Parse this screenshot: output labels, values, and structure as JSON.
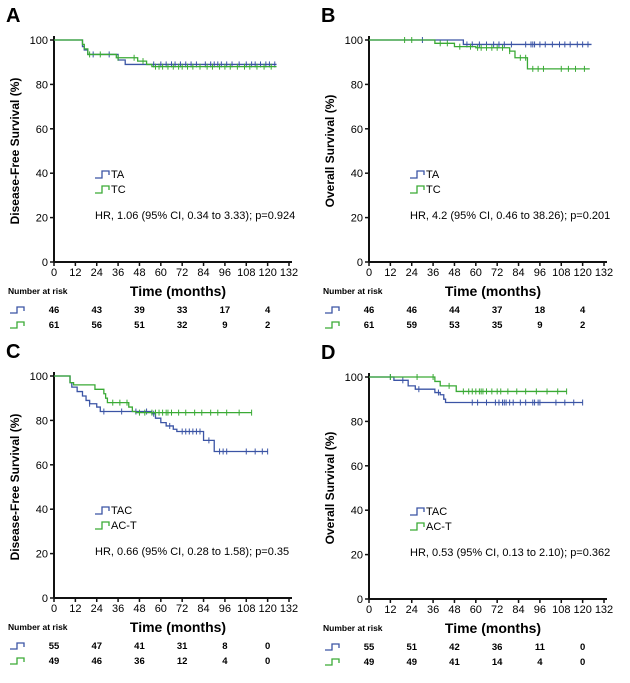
{
  "colors": {
    "blue": "#3b54a5",
    "green": "#3aaa35",
    "axis": "#111111"
  },
  "chart_data": [
    {
      "type": "line",
      "subtype": "kaplan-meier",
      "panel": "A",
      "ylabel": "Disease-Free Survival (%)",
      "xlabel": "Time (months)",
      "xlim": [
        0,
        132
      ],
      "ylim": [
        0,
        100
      ],
      "xticks": [
        "0",
        "12",
        "24",
        "36",
        "48",
        "60",
        "72",
        "84",
        "96",
        "108",
        "120",
        "132"
      ],
      "yticks": [
        "0",
        "20",
        "40",
        "60",
        "80",
        "100"
      ],
      "annotation": "HR, 1.06 (95% CI, 0.34 to 3.33); p=0.924",
      "risk_title": "Number at risk",
      "risk_times": [
        0,
        24,
        48,
        72,
        96,
        120
      ],
      "series": [
        {
          "name": "TA",
          "color": "blue",
          "risk": [
            "46",
            "43",
            "39",
            "33",
            "17",
            "4"
          ],
          "steps": [
            [
              0,
              100
            ],
            [
              16,
              97
            ],
            [
              17,
              95.5
            ],
            [
              19,
              93.5
            ],
            [
              36,
              91
            ],
            [
              40,
              89
            ],
            [
              125,
              89
            ]
          ],
          "censored": [
            22,
            31,
            56,
            60,
            63,
            66,
            68,
            71,
            74,
            77,
            80,
            85,
            88,
            90,
            92,
            94,
            97,
            100,
            104,
            108,
            111,
            113,
            116,
            119,
            121,
            124
          ]
        },
        {
          "name": "TC",
          "color": "green",
          "risk": [
            "61",
            "56",
            "51",
            "32",
            "9",
            "2"
          ],
          "steps": [
            [
              0,
              100
            ],
            [
              16,
              98
            ],
            [
              17,
              96
            ],
            [
              19,
              93.5
            ],
            [
              35,
              92
            ],
            [
              47,
              90.5
            ],
            [
              52,
              89
            ],
            [
              55,
              88
            ],
            [
              125,
              88
            ]
          ],
          "censored": [
            20,
            26,
            36,
            45,
            50,
            57,
            59,
            61,
            64,
            67,
            70,
            72,
            75,
            78,
            82,
            86,
            89,
            93,
            96,
            99,
            103,
            107,
            110,
            114,
            118,
            122
          ]
        }
      ]
    },
    {
      "type": "line",
      "subtype": "kaplan-meier",
      "panel": "B",
      "ylabel": "Overall Survival (%)",
      "xlabel": "Time (months)",
      "xlim": [
        0,
        132
      ],
      "ylim": [
        0,
        100
      ],
      "xticks": [
        "0",
        "12",
        "24",
        "36",
        "48",
        "60",
        "72",
        "84",
        "96",
        "108",
        "120",
        "132"
      ],
      "yticks": [
        "0",
        "20",
        "40",
        "60",
        "80",
        "100"
      ],
      "annotation": "HR, 4.2 (95% CI, 0.46 to 38.26); p=0.201",
      "risk_title": "Number at risk",
      "risk_times": [
        0,
        24,
        48,
        72,
        96,
        120
      ],
      "series": [
        {
          "name": "TA",
          "color": "blue",
          "risk": [
            "46",
            "46",
            "44",
            "37",
            "18",
            "4"
          ],
          "steps": [
            [
              0,
              100
            ],
            [
              53,
              98
            ],
            [
              125,
              98
            ]
          ],
          "censored": [
            30,
            55,
            58,
            62,
            66,
            70,
            73,
            76,
            80,
            88,
            91,
            92,
            93,
            96,
            99,
            103,
            107,
            110,
            113,
            117,
            120,
            123
          ]
        },
        {
          "name": "TC",
          "color": "green",
          "risk": [
            "61",
            "59",
            "53",
            "35",
            "9",
            "2"
          ],
          "steps": [
            [
              0,
              100
            ],
            [
              37,
              98.5
            ],
            [
              48,
              97
            ],
            [
              60,
              96.5
            ],
            [
              79,
              95
            ],
            [
              82,
              92
            ],
            [
              89,
              87
            ],
            [
              124,
              87
            ]
          ],
          "censored": [
            20,
            24,
            40,
            44,
            51,
            57,
            61,
            63,
            66,
            69,
            72,
            75,
            79,
            85,
            88,
            92,
            95,
            98,
            108,
            112,
            116,
            121
          ]
        }
      ]
    },
    {
      "type": "line",
      "subtype": "kaplan-meier",
      "panel": "C",
      "ylabel": "Disease-Free Survival (%)",
      "xlabel": "Time (months)",
      "xlim": [
        0,
        132
      ],
      "ylim": [
        0,
        100
      ],
      "xticks": [
        "0",
        "12",
        "24",
        "36",
        "48",
        "60",
        "72",
        "84",
        "96",
        "108",
        "120",
        "132"
      ],
      "yticks": [
        "0",
        "20",
        "40",
        "60",
        "80",
        "100"
      ],
      "annotation": "HR, 0.66 (95% CI, 0.28 to 1.58); p=0.35",
      "risk_title": "Number at risk",
      "risk_times": [
        0,
        24,
        48,
        72,
        96,
        120
      ],
      "series": [
        {
          "name": "TAC",
          "color": "blue",
          "risk": [
            "55",
            "47",
            "41",
            "31",
            "8",
            "0"
          ],
          "steps": [
            [
              0,
              100
            ],
            [
              9,
              97
            ],
            [
              10,
              95
            ],
            [
              13,
              93
            ],
            [
              16,
              91
            ],
            [
              18,
              89
            ],
            [
              20,
              87.5
            ],
            [
              24,
              86
            ],
            [
              26,
              84
            ],
            [
              55,
              83
            ],
            [
              57,
              81
            ],
            [
              60,
              79
            ],
            [
              63,
              77.5
            ],
            [
              67,
              76
            ],
            [
              69,
              75
            ],
            [
              84,
              71
            ],
            [
              90,
              66
            ],
            [
              120,
              66
            ]
          ],
          "censored": [
            20,
            28,
            38,
            46,
            52,
            56,
            65,
            72,
            74,
            76,
            78,
            80,
            82,
            87,
            93,
            95,
            97,
            108,
            113,
            117,
            120
          ]
        },
        {
          "name": "AC-T",
          "color": "green",
          "risk": [
            "49",
            "46",
            "36",
            "12",
            "4",
            "0"
          ],
          "steps": [
            [
              0,
              100
            ],
            [
              9,
              97
            ],
            [
              11,
              96
            ],
            [
              23,
              94
            ],
            [
              28,
              92
            ],
            [
              29,
              90
            ],
            [
              30,
              88
            ],
            [
              42,
              86
            ],
            [
              44,
              84
            ],
            [
              46,
              83.5
            ],
            [
              111,
              83.5
            ]
          ],
          "censored": [
            33,
            37,
            41,
            48,
            51,
            55,
            57,
            59,
            61,
            63,
            64,
            66,
            70,
            74,
            79,
            83,
            88,
            92,
            97,
            104,
            111
          ]
        }
      ]
    },
    {
      "type": "line",
      "subtype": "kaplan-meier",
      "panel": "D",
      "ylabel": "Overall Survival (%)",
      "xlabel": "Time (months)",
      "xlim": [
        0,
        132
      ],
      "ylim": [
        0,
        100
      ],
      "xticks": [
        "0",
        "12",
        "24",
        "36",
        "48",
        "60",
        "72",
        "84",
        "96",
        "108",
        "120",
        "132"
      ],
      "yticks": [
        "0",
        "20",
        "40",
        "60",
        "80",
        "100"
      ],
      "annotation": "HR, 0.53 (95% CI, 0.13 to 2.10); p=0.362",
      "risk_title": "Number at risk",
      "risk_times": [
        0,
        24,
        48,
        72,
        96,
        120
      ],
      "series": [
        {
          "name": "TAC",
          "color": "blue",
          "risk": [
            "55",
            "51",
            "42",
            "36",
            "11",
            "0"
          ],
          "steps": [
            [
              0,
              100
            ],
            [
              14,
              98.5
            ],
            [
              22,
              96
            ],
            [
              26,
              94.5
            ],
            [
              37,
              93
            ],
            [
              40,
              92
            ],
            [
              42,
              90
            ],
            [
              43,
              88.5
            ],
            [
              120,
              88.5
            ]
          ],
          "censored": [
            12,
            19,
            28,
            39,
            58,
            61,
            66,
            71,
            73,
            75,
            76,
            77,
            79,
            81,
            85,
            88,
            92,
            93,
            95,
            96,
            105,
            110,
            115,
            120
          ]
        },
        {
          "name": "AC-T",
          "color": "green",
          "risk": [
            "49",
            "49",
            "41",
            "14",
            "4",
            "0"
          ],
          "steps": [
            [
              0,
              100
            ],
            [
              37,
              98
            ],
            [
              40,
              96
            ],
            [
              49,
              93.5
            ],
            [
              111,
              93.5
            ]
          ],
          "censored": [
            12,
            27,
            36,
            45,
            53,
            56,
            58,
            60,
            62,
            63,
            64,
            66,
            69,
            72,
            74,
            78,
            83,
            88,
            94,
            100,
            106,
            111
          ]
        }
      ]
    }
  ]
}
